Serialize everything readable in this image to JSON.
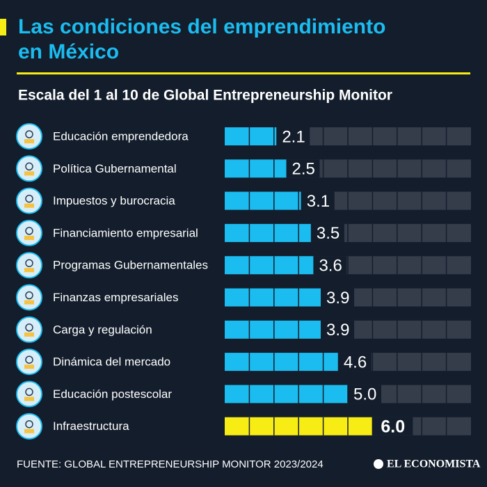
{
  "chart_data": {
    "type": "bar",
    "orientation": "horizontal",
    "title": "Las condiciones del emprendimiento en México",
    "subtitle": "Escala del 1 al 10 de Global Entrepreneurship Monitor",
    "categories": [
      "Educación emprendedora",
      "Política Gubernamental",
      "Impuestos y burocracia",
      "Financiamiento empresarial",
      "Programas Gubernamentales",
      "Finanzas empresariales",
      "Carga y regulación",
      "Dinámica del mercado",
      "Educación postescolar",
      "Infraestructura"
    ],
    "values": [
      2.1,
      2.5,
      3.1,
      3.5,
      3.6,
      3.9,
      3.9,
      4.6,
      5.0,
      6.0
    ],
    "value_labels": [
      "2.1",
      "2.5",
      "3.1",
      "3.5",
      "3.6",
      "3.9",
      "3.9",
      "4.6",
      "5.0",
      "6.0"
    ],
    "colors": [
      "#1bbcf0",
      "#1bbcf0",
      "#1bbcf0",
      "#1bbcf0",
      "#1bbcf0",
      "#1bbcf0",
      "#1bbcf0",
      "#1bbcf0",
      "#1bbcf0",
      "#f7ec13"
    ],
    "highlight_color": "#f7ec13",
    "xlim": [
      0,
      10
    ],
    "xticks": [
      0,
      1,
      2,
      3,
      4,
      5,
      6,
      7,
      8,
      9,
      10
    ],
    "source": "FUENTE: GLOBAL ENTREPRENEURSHIP MONITOR 2023/2024",
    "brand": "EL ECONOMISTA"
  }
}
